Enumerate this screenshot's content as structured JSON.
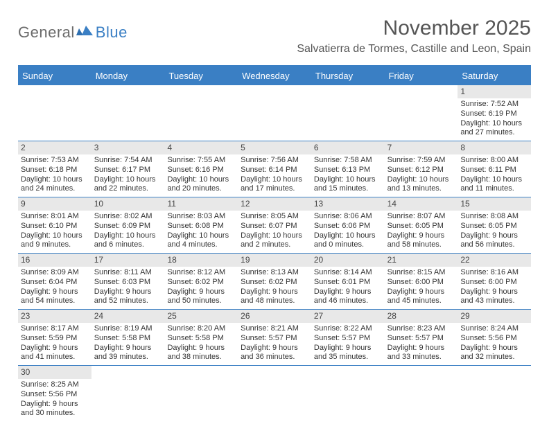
{
  "brand": {
    "text_general": "General",
    "text_blue": "Blue"
  },
  "title": "November 2025",
  "location": "Salvatierra de Tormes, Castille and Leon, Spain",
  "colors": {
    "header_bg": "#3a7fc4",
    "header_text": "#ffffff",
    "daynum_bg": "#e8e8e8",
    "border": "#3a7fc4",
    "page_bg": "#ffffff",
    "text": "#333333",
    "title_text": "#555555"
  },
  "weekdays": [
    "Sunday",
    "Monday",
    "Tuesday",
    "Wednesday",
    "Thursday",
    "Friday",
    "Saturday"
  ],
  "weeks": [
    [
      {
        "n": "",
        "sunrise": "",
        "sunset": "",
        "daylight": ""
      },
      {
        "n": "",
        "sunrise": "",
        "sunset": "",
        "daylight": ""
      },
      {
        "n": "",
        "sunrise": "",
        "sunset": "",
        "daylight": ""
      },
      {
        "n": "",
        "sunrise": "",
        "sunset": "",
        "daylight": ""
      },
      {
        "n": "",
        "sunrise": "",
        "sunset": "",
        "daylight": ""
      },
      {
        "n": "",
        "sunrise": "",
        "sunset": "",
        "daylight": ""
      },
      {
        "n": "1",
        "sunrise": "Sunrise: 7:52 AM",
        "sunset": "Sunset: 6:19 PM",
        "daylight": "Daylight: 10 hours and 27 minutes."
      }
    ],
    [
      {
        "n": "2",
        "sunrise": "Sunrise: 7:53 AM",
        "sunset": "Sunset: 6:18 PM",
        "daylight": "Daylight: 10 hours and 24 minutes."
      },
      {
        "n": "3",
        "sunrise": "Sunrise: 7:54 AM",
        "sunset": "Sunset: 6:17 PM",
        "daylight": "Daylight: 10 hours and 22 minutes."
      },
      {
        "n": "4",
        "sunrise": "Sunrise: 7:55 AM",
        "sunset": "Sunset: 6:16 PM",
        "daylight": "Daylight: 10 hours and 20 minutes."
      },
      {
        "n": "5",
        "sunrise": "Sunrise: 7:56 AM",
        "sunset": "Sunset: 6:14 PM",
        "daylight": "Daylight: 10 hours and 17 minutes."
      },
      {
        "n": "6",
        "sunrise": "Sunrise: 7:58 AM",
        "sunset": "Sunset: 6:13 PM",
        "daylight": "Daylight: 10 hours and 15 minutes."
      },
      {
        "n": "7",
        "sunrise": "Sunrise: 7:59 AM",
        "sunset": "Sunset: 6:12 PM",
        "daylight": "Daylight: 10 hours and 13 minutes."
      },
      {
        "n": "8",
        "sunrise": "Sunrise: 8:00 AM",
        "sunset": "Sunset: 6:11 PM",
        "daylight": "Daylight: 10 hours and 11 minutes."
      }
    ],
    [
      {
        "n": "9",
        "sunrise": "Sunrise: 8:01 AM",
        "sunset": "Sunset: 6:10 PM",
        "daylight": "Daylight: 10 hours and 9 minutes."
      },
      {
        "n": "10",
        "sunrise": "Sunrise: 8:02 AM",
        "sunset": "Sunset: 6:09 PM",
        "daylight": "Daylight: 10 hours and 6 minutes."
      },
      {
        "n": "11",
        "sunrise": "Sunrise: 8:03 AM",
        "sunset": "Sunset: 6:08 PM",
        "daylight": "Daylight: 10 hours and 4 minutes."
      },
      {
        "n": "12",
        "sunrise": "Sunrise: 8:05 AM",
        "sunset": "Sunset: 6:07 PM",
        "daylight": "Daylight: 10 hours and 2 minutes."
      },
      {
        "n": "13",
        "sunrise": "Sunrise: 8:06 AM",
        "sunset": "Sunset: 6:06 PM",
        "daylight": "Daylight: 10 hours and 0 minutes."
      },
      {
        "n": "14",
        "sunrise": "Sunrise: 8:07 AM",
        "sunset": "Sunset: 6:05 PM",
        "daylight": "Daylight: 9 hours and 58 minutes."
      },
      {
        "n": "15",
        "sunrise": "Sunrise: 8:08 AM",
        "sunset": "Sunset: 6:05 PM",
        "daylight": "Daylight: 9 hours and 56 minutes."
      }
    ],
    [
      {
        "n": "16",
        "sunrise": "Sunrise: 8:09 AM",
        "sunset": "Sunset: 6:04 PM",
        "daylight": "Daylight: 9 hours and 54 minutes."
      },
      {
        "n": "17",
        "sunrise": "Sunrise: 8:11 AM",
        "sunset": "Sunset: 6:03 PM",
        "daylight": "Daylight: 9 hours and 52 minutes."
      },
      {
        "n": "18",
        "sunrise": "Sunrise: 8:12 AM",
        "sunset": "Sunset: 6:02 PM",
        "daylight": "Daylight: 9 hours and 50 minutes."
      },
      {
        "n": "19",
        "sunrise": "Sunrise: 8:13 AM",
        "sunset": "Sunset: 6:02 PM",
        "daylight": "Daylight: 9 hours and 48 minutes."
      },
      {
        "n": "20",
        "sunrise": "Sunrise: 8:14 AM",
        "sunset": "Sunset: 6:01 PM",
        "daylight": "Daylight: 9 hours and 46 minutes."
      },
      {
        "n": "21",
        "sunrise": "Sunrise: 8:15 AM",
        "sunset": "Sunset: 6:00 PM",
        "daylight": "Daylight: 9 hours and 45 minutes."
      },
      {
        "n": "22",
        "sunrise": "Sunrise: 8:16 AM",
        "sunset": "Sunset: 6:00 PM",
        "daylight": "Daylight: 9 hours and 43 minutes."
      }
    ],
    [
      {
        "n": "23",
        "sunrise": "Sunrise: 8:17 AM",
        "sunset": "Sunset: 5:59 PM",
        "daylight": "Daylight: 9 hours and 41 minutes."
      },
      {
        "n": "24",
        "sunrise": "Sunrise: 8:19 AM",
        "sunset": "Sunset: 5:58 PM",
        "daylight": "Daylight: 9 hours and 39 minutes."
      },
      {
        "n": "25",
        "sunrise": "Sunrise: 8:20 AM",
        "sunset": "Sunset: 5:58 PM",
        "daylight": "Daylight: 9 hours and 38 minutes."
      },
      {
        "n": "26",
        "sunrise": "Sunrise: 8:21 AM",
        "sunset": "Sunset: 5:57 PM",
        "daylight": "Daylight: 9 hours and 36 minutes."
      },
      {
        "n": "27",
        "sunrise": "Sunrise: 8:22 AM",
        "sunset": "Sunset: 5:57 PM",
        "daylight": "Daylight: 9 hours and 35 minutes."
      },
      {
        "n": "28",
        "sunrise": "Sunrise: 8:23 AM",
        "sunset": "Sunset: 5:57 PM",
        "daylight": "Daylight: 9 hours and 33 minutes."
      },
      {
        "n": "29",
        "sunrise": "Sunrise: 8:24 AM",
        "sunset": "Sunset: 5:56 PM",
        "daylight": "Daylight: 9 hours and 32 minutes."
      }
    ],
    [
      {
        "n": "30",
        "sunrise": "Sunrise: 8:25 AM",
        "sunset": "Sunset: 5:56 PM",
        "daylight": "Daylight: 9 hours and 30 minutes."
      },
      {
        "n": "",
        "sunrise": "",
        "sunset": "",
        "daylight": ""
      },
      {
        "n": "",
        "sunrise": "",
        "sunset": "",
        "daylight": ""
      },
      {
        "n": "",
        "sunrise": "",
        "sunset": "",
        "daylight": ""
      },
      {
        "n": "",
        "sunrise": "",
        "sunset": "",
        "daylight": ""
      },
      {
        "n": "",
        "sunrise": "",
        "sunset": "",
        "daylight": ""
      },
      {
        "n": "",
        "sunrise": "",
        "sunset": "",
        "daylight": ""
      }
    ]
  ]
}
